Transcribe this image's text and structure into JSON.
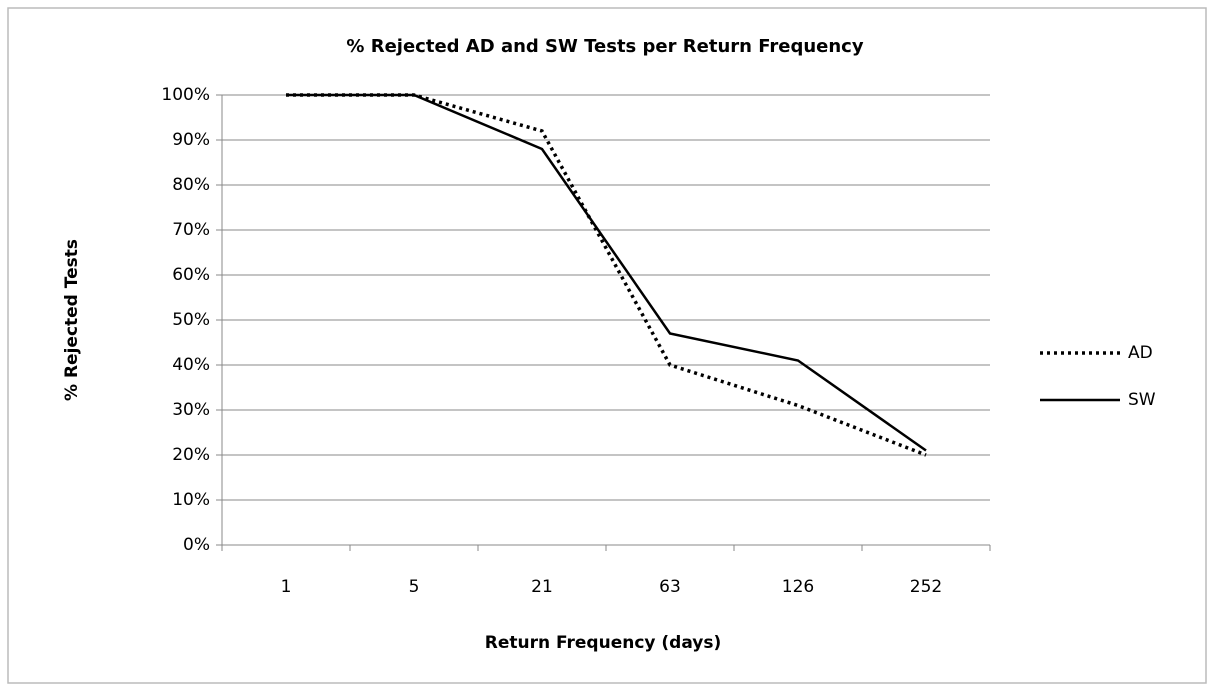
{
  "chart_data": {
    "type": "line",
    "title": "% Rejected AD and SW Tests per Return Frequency",
    "x_label": "Return Frequency (days)",
    "y_label": "% Rejected Tests",
    "categories": [
      "1",
      "5",
      "21",
      "63",
      "126",
      "252"
    ],
    "series": [
      {
        "name": "AD",
        "color": "#000000",
        "style": "dotted",
        "values": [
          100,
          100,
          92,
          40,
          31,
          20
        ]
      },
      {
        "name": "SW",
        "color": "#000000",
        "style": "solid",
        "values": [
          100,
          100,
          88,
          47,
          41,
          21
        ]
      }
    ],
    "ylim": [
      0,
      100
    ],
    "yticks": [
      {
        "value": 0,
        "label": "0%"
      },
      {
        "value": 10,
        "label": "10%"
      },
      {
        "value": 20,
        "label": "20%"
      },
      {
        "value": 30,
        "label": "30%"
      },
      {
        "value": 40,
        "label": "40%"
      },
      {
        "value": 50,
        "label": "50%"
      },
      {
        "value": 60,
        "label": "60%"
      },
      {
        "value": 70,
        "label": "70%"
      },
      {
        "value": 80,
        "label": "80%"
      },
      {
        "value": 90,
        "label": "90%"
      },
      {
        "value": 100,
        "label": "100%"
      }
    ],
    "grid": true,
    "legend": "right"
  }
}
